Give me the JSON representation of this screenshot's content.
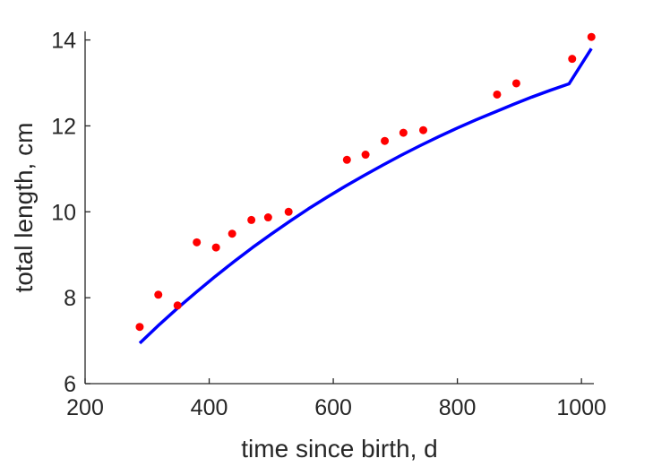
{
  "chart_data": {
    "type": "scatter",
    "title": "",
    "xlabel": "time since birth, d",
    "ylabel": "total length, cm",
    "xlim": [
      200,
      1020
    ],
    "ylim": [
      6,
      14.2
    ],
    "xticks": [
      200,
      400,
      600,
      800,
      1000
    ],
    "yticks": [
      6,
      8,
      10,
      12,
      14
    ],
    "grid": false,
    "series": [
      {
        "kind": "points",
        "color": "#ff0000",
        "x": [
          288,
          318,
          349,
          380,
          411,
          437,
          468,
          495,
          528,
          622,
          652,
          683,
          713,
          745,
          864,
          895,
          985,
          1016
        ],
        "y": [
          7.32,
          8.07,
          7.82,
          9.29,
          9.17,
          9.49,
          9.81,
          9.87,
          10.0,
          11.21,
          11.33,
          11.65,
          11.84,
          11.9,
          12.73,
          12.99,
          13.56,
          14.07
        ]
      },
      {
        "kind": "curve",
        "color": "#0000ff",
        "x": [
          288,
          320,
          350,
          380,
          410,
          440,
          470,
          500,
          530,
          560,
          590,
          620,
          650,
          680,
          710,
          740,
          770,
          800,
          830,
          860,
          890,
          920,
          950,
          980,
          1016
        ],
        "y": [
          6.94,
          7.38,
          7.77,
          8.14,
          8.5,
          8.84,
          9.17,
          9.48,
          9.78,
          10.07,
          10.34,
          10.6,
          10.85,
          11.09,
          11.32,
          11.54,
          11.75,
          11.95,
          12.14,
          12.32,
          12.5,
          12.67,
          12.83,
          12.98,
          13.8
        ]
      }
    ]
  }
}
